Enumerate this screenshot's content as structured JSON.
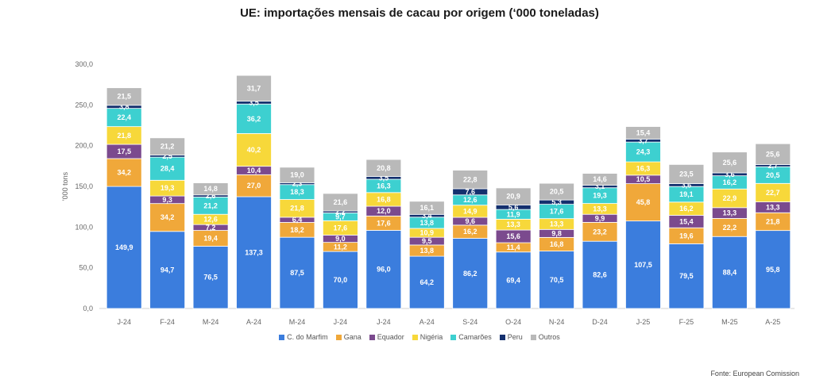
{
  "chart_data": {
    "type": "bar",
    "stacked": true,
    "title": "UE: importações mensais de cacau por origem (‘000 toneladas)",
    "ylabel": "'000 tons",
    "ylim": [
      0,
      300
    ],
    "yticks": [
      "0,0",
      "50,0",
      "100,0",
      "150,0",
      "200,0",
      "250,0",
      "300,0"
    ],
    "categories": [
      "J-24",
      "F-24",
      "M-24",
      "A-24",
      "M-24",
      "J-24",
      "J-24",
      "A-24",
      "S-24",
      "O-24",
      "N-24",
      "D-24",
      "J-25",
      "F-25",
      "M-25",
      "A-25"
    ],
    "series": [
      {
        "name": "C. do Marfim",
        "color": "#3b7ddd",
        "text_color": "#ffffff",
        "values": [
          149.9,
          94.7,
          76.5,
          137.3,
          87.5,
          70.0,
          96.0,
          64.2,
          86.2,
          69.4,
          70.5,
          82.6,
          107.5,
          79.5,
          88.4,
          95.8
        ],
        "labels": [
          "149,9",
          "94,7",
          "76,5",
          "137,3",
          "87,5",
          "70,0",
          "96,0",
          "64,2",
          "86,2",
          "69,4",
          "70,5",
          "82,6",
          "107,5",
          "79,5",
          "88,4",
          "95,8"
        ]
      },
      {
        "name": "Gana",
        "color": "#f0a83a",
        "text_color": "#ffffff",
        "values": [
          34.2,
          34.2,
          19.4,
          27.0,
          18.2,
          11.2,
          17.6,
          13.8,
          16.2,
          11.4,
          16.8,
          23.2,
          45.8,
          19.6,
          22.2,
          21.8
        ],
        "labels": [
          "34,2",
          "34,2",
          "19,4",
          "27,0",
          "18,2",
          "11,2",
          "17,6",
          "13,8",
          "16,2",
          "11,4",
          "16,8",
          "23,2",
          "45,8",
          "19,6",
          "22,2",
          "21,8"
        ]
      },
      {
        "name": "Equador",
        "color": "#7b4a8e",
        "text_color": "#ffffff",
        "values": [
          17.5,
          9.3,
          7.2,
          10.4,
          6.4,
          9.0,
          12.0,
          9.5,
          9.6,
          15.6,
          9.8,
          9.9,
          10.5,
          15.4,
          13.3,
          13.3
        ],
        "labels": [
          "17,5",
          "9,3",
          "7,2",
          "10,4",
          "6,4",
          "9,0",
          "12,0",
          "9,5",
          "9,6",
          "15,6",
          "9,8",
          "9,9",
          "10,5",
          "15,4",
          "13,3",
          "13,3"
        ]
      },
      {
        "name": "Nigéria",
        "color": "#f7d83a",
        "text_color": "#ffffff",
        "values": [
          21.8,
          19.3,
          12.6,
          40.2,
          21.8,
          17.6,
          16.8,
          10.9,
          14.9,
          13.3,
          13.3,
          13.3,
          16.3,
          16.2,
          22.9,
          22.7
        ],
        "labels": [
          "21,8",
          "19,3",
          "12,6",
          "40,2",
          "21,8",
          "17,6",
          "16,8",
          "10,9",
          "14,9",
          "13,3",
          "13,3",
          "13,3",
          "16,3",
          "16,2",
          "22,9",
          "22,7"
        ]
      },
      {
        "name": "Camarões",
        "color": "#3dd0d0",
        "text_color": "#ffffff",
        "values": [
          22.4,
          28.4,
          21.2,
          36.2,
          18.3,
          9.7,
          16.3,
          13.8,
          12.6,
          11.9,
          17.6,
          19.3,
          24.3,
          19.1,
          16.2,
          20.5
        ],
        "labels": [
          "22,4",
          "28,4",
          "21,2",
          "36,2",
          "18,3",
          "9,7",
          "16,3",
          "13,8",
          "12,6",
          "11,9",
          "17,6",
          "19,3",
          "24,3",
          "19,1",
          "16,2",
          "20,5"
        ]
      },
      {
        "name": "Peru",
        "color": "#14306e",
        "text_color": "#ffffff",
        "values": [
          3.8,
          2.5,
          2.6,
          3.5,
          2.3,
          2.2,
          3.5,
          3.4,
          7.6,
          5.6,
          5.3,
          3.1,
          3.7,
          3.6,
          3.6,
          2.7
        ],
        "labels": [
          "3,8",
          "2,5",
          "2,6",
          "3,5",
          "2,3",
          "2,2",
          "3,5",
          "3,4",
          "7,6",
          "5,6",
          "5,3",
          "3,1",
          "3,7",
          "3,6",
          "3,6",
          "2,7"
        ]
      },
      {
        "name": "Outros",
        "color": "#b9b9b9",
        "text_color": "#ffffff",
        "values": [
          21.5,
          21.2,
          14.8,
          31.7,
          19.0,
          21.6,
          20.8,
          16.1,
          22.8,
          20.9,
          20.5,
          14.6,
          15.4,
          23.5,
          25.6,
          25.6
        ],
        "labels": [
          "21,5",
          "21,2",
          "14,8",
          "31,7",
          "19,0",
          "21,6",
          "20,8",
          "16,1",
          "22,8",
          "20,9",
          "20,5",
          "14,6",
          "15,4",
          "23,5",
          "25,6",
          "25,6"
        ]
      }
    ],
    "legend_position": "bottom",
    "grid": false
  },
  "source": "Fonte:  European Comission"
}
